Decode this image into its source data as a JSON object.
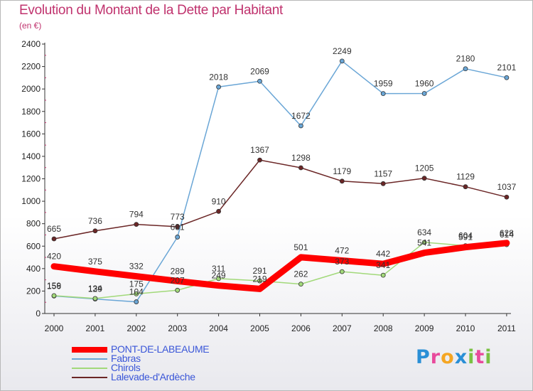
{
  "header": {
    "title": "Evolution du Montant de la Dette par Habitant",
    "subtitle": "(en €)"
  },
  "logo": {
    "text": "Proxiti",
    "colors": [
      "#2a8fd6",
      "#e84a9c",
      "#f5a623",
      "#2a8fd6",
      "#7ac143",
      "#e84a9c",
      "#7ac143"
    ]
  },
  "chart_data": {
    "type": "line",
    "title": "Evolution du Montant de la Dette par Habitant",
    "subtitle": "(en €)",
    "xlabel": "",
    "ylabel": "",
    "categories": [
      "2000",
      "2001",
      "2002",
      "2003",
      "2004",
      "2005",
      "2006",
      "2007",
      "2008",
      "2009",
      "2010",
      "2011"
    ],
    "ylim": [
      0,
      2400
    ],
    "yticks": [
      0,
      200,
      400,
      600,
      800,
      1000,
      1200,
      1400,
      1600,
      1800,
      2000,
      2200,
      2400
    ],
    "grid": false,
    "legend_position": "bottom-left",
    "series": [
      {
        "name": "PONT-DE-LABEAUME",
        "color": "#ff0000",
        "values": [
          420,
          375,
          332,
          289,
          249,
          219,
          501,
          472,
          442,
          541,
          591,
          628
        ]
      },
      {
        "name": "Fabras",
        "color": "#6aa6d6",
        "values": [
          156,
          129,
          104,
          681,
          2018,
          2069,
          1672,
          2249,
          1959,
          1960,
          2180,
          2101
        ]
      },
      {
        "name": "Chirols",
        "color": "#a2d97a",
        "values": [
          159,
          134,
          175,
          207,
          311,
          291,
          262,
          373,
          341,
          634,
          604,
          614
        ]
      },
      {
        "name": "Lalevade-d'Ardèche",
        "color": "#6b2626",
        "values": [
          665,
          736,
          794,
          773,
          910,
          1367,
          1298,
          1179,
          1157,
          1205,
          1129,
          1037
        ]
      }
    ]
  }
}
